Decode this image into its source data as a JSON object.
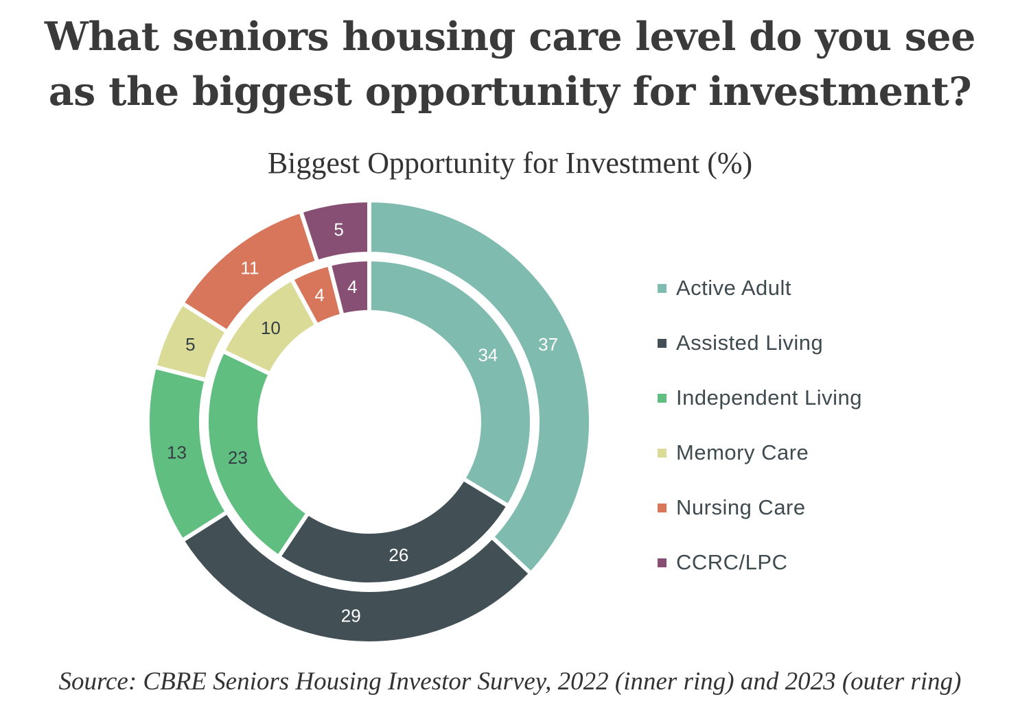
{
  "title": {
    "line1": "What seniors housing care level do you see",
    "line2": "as the biggest opportunity for investment?"
  },
  "chart_title": "Biggest Opportunity for Investment (%)",
  "source": "Source: CBRE Seniors Housing Investor Survey, 2022 (inner ring) and 2023 (outer ring)",
  "legend": [
    {
      "label": "Active Adult",
      "color": "#7fbbae"
    },
    {
      "label": "Assisted Living",
      "color": "#425055"
    },
    {
      "label": "Independent Living",
      "color": "#60bf80"
    },
    {
      "label": "Memory Care",
      "color": "#dbdb98"
    },
    {
      "label": "Nursing Care",
      "color": "#d7765a"
    },
    {
      "label": "CCRC/LPC",
      "color": "#874f74"
    }
  ],
  "chart_data": {
    "type": "pie",
    "subtype": "nested-donut",
    "title": "Biggest Opportunity for Investment (%)",
    "categories": [
      "Active Adult",
      "Assisted Living",
      "Independent Living",
      "Memory Care",
      "Nursing Care",
      "CCRC/LPC"
    ],
    "colors": [
      "#7fbbae",
      "#425055",
      "#60bf80",
      "#dbdb98",
      "#d7765a",
      "#874f74"
    ],
    "label_colors": [
      "#ffffff",
      "#ffffff",
      "#333f44",
      "#333f44",
      "#ffffff",
      "#ffffff"
    ],
    "series": [
      {
        "name": "2022 (inner ring)",
        "values": [
          34,
          26,
          23,
          10,
          4,
          4
        ]
      },
      {
        "name": "2023 (outer ring)",
        "values": [
          37,
          29,
          13,
          5,
          11,
          5
        ]
      }
    ],
    "legend_position": "right",
    "unit": "%"
  }
}
